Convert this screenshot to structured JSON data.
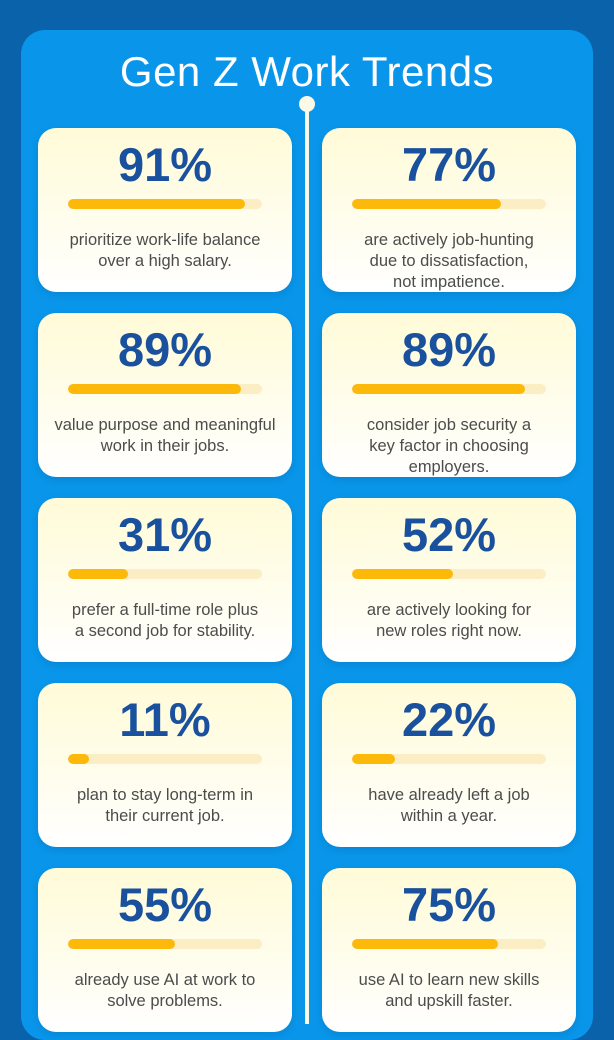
{
  "header": {
    "title": "Gen Z Work Trends"
  },
  "colors": {
    "outer_background": "#0A62AB",
    "panel_background": "#0996EA",
    "card_gradient_top": "#FFFBD8",
    "card_gradient_bottom": "#FFFFFF",
    "bar_fill": "#FCB90A",
    "bar_track": "#FBEDC4",
    "percent_text": "#1A519E",
    "description_text": "#4C4C4C",
    "title_text": "#FFFFFF",
    "timeline": "#FCF9E6"
  },
  "cards": [
    {
      "value": "91%",
      "pct": 91,
      "description": "prioritize work-life balance\nover a high salary."
    },
    {
      "value": "77%",
      "pct": 77,
      "description": "are actively job-hunting\ndue to dissatisfaction,\nnot impatience."
    },
    {
      "value": "89%",
      "pct": 89,
      "description": "value purpose and meaningful\nwork in their jobs."
    },
    {
      "value": "89%",
      "pct": 89,
      "description": "consider job security a\nkey factor in choosing\nemployers."
    },
    {
      "value": "31%",
      "pct": 31,
      "description": "prefer a full-time role plus\na second job for stability."
    },
    {
      "value": "52%",
      "pct": 52,
      "description": "are actively looking for\nnew roles right now."
    },
    {
      "value": "11%",
      "pct": 11,
      "description": "plan to stay long-term in\ntheir current job."
    },
    {
      "value": "22%",
      "pct": 22,
      "description": "have already left a job\nwithin a year."
    },
    {
      "value": "55%",
      "pct": 55,
      "description": "already use AI at work to\nsolve problems."
    },
    {
      "value": "75%",
      "pct": 75,
      "description": "use AI to learn new skills\nand upskill faster."
    }
  ],
  "chart_data": {
    "type": "bar",
    "title": "Gen Z Work Trends",
    "orientation": "horizontal-progress",
    "unit": "%",
    "value_range": [
      0,
      100
    ],
    "grid": false,
    "legend": false,
    "categories": [
      "prioritize work-life balance over a high salary.",
      "are actively job-hunting due to dissatisfaction, not impatience.",
      "value purpose and meaningful work in their jobs.",
      "consider job security a key factor in choosing employers.",
      "prefer a full-time role plus a second job for stability.",
      "are actively looking for new roles right now.",
      "plan to stay long-term in their current job.",
      "have already left a job within a year.",
      "already use AI at work to solve problems.",
      "use AI to learn new skills and upskill faster."
    ],
    "values": [
      91,
      77,
      89,
      89,
      31,
      52,
      11,
      22,
      55,
      75
    ]
  }
}
